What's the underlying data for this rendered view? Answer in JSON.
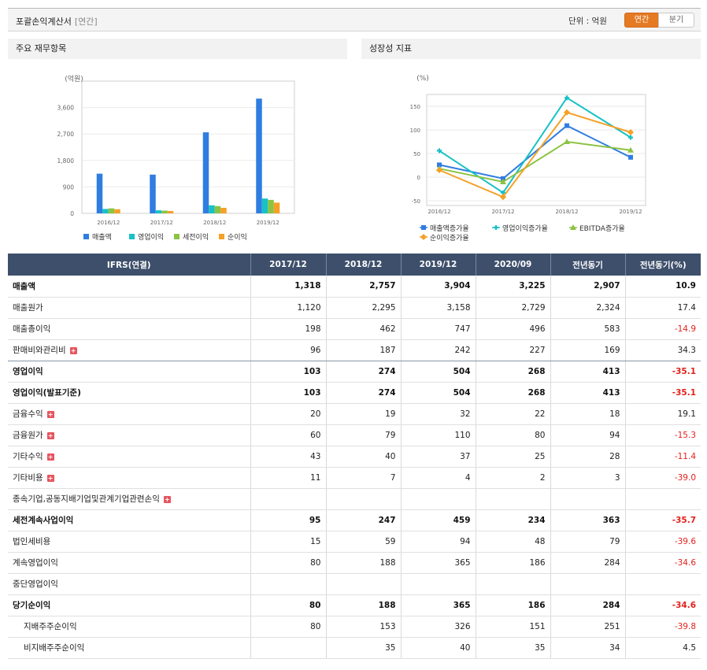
{
  "header": {
    "title": "포괄손익계산서",
    "period": "[연간]",
    "unit_label": "단위 : 억원",
    "tab_annual": "연간",
    "tab_quarter": "분기"
  },
  "panels": {
    "left_title": "주요 재무항목",
    "right_title": "성장성 지표"
  },
  "colors": {
    "blue": "#2f7de1",
    "cyan": "#17c1c6",
    "green": "#8cc342",
    "orange": "#f5a027",
    "header_bg": "#3d4f6b",
    "negative": "#e3211c",
    "accent": "#e57a23"
  },
  "chart_data": [
    {
      "type": "bar",
      "title": "",
      "ylabel": "(억원)",
      "ylim": [
        0,
        4500
      ],
      "yticks": [
        "0",
        "900",
        "1,800",
        "2,700",
        "3,600"
      ],
      "ytick_values": [
        0,
        900,
        1800,
        2700,
        3600
      ],
      "categories": [
        "2016/12",
        "2017/12",
        "2018/12",
        "2019/12"
      ],
      "legend_position": "bottom",
      "series": [
        {
          "name": "매출액",
          "color": "#2f7de1",
          "values": [
            1350,
            1318,
            2757,
            3904
          ]
        },
        {
          "name": "영업이익",
          "color": "#17c1c6",
          "values": [
            150,
            103,
            274,
            504
          ]
        },
        {
          "name": "세전이익",
          "color": "#8cc342",
          "values": [
            170,
            95,
            247,
            459
          ]
        },
        {
          "name": "순이익",
          "color": "#f5a027",
          "values": [
            140,
            80,
            188,
            365
          ]
        }
      ]
    },
    {
      "type": "line",
      "title": "",
      "ylabel": "(%)",
      "ylim": [
        -60,
        175
      ],
      "yticks": [
        "-50",
        "0",
        "50",
        "100",
        "150"
      ],
      "ytick_values": [
        -50,
        0,
        50,
        100,
        150
      ],
      "categories": [
        "2016/12",
        "2017/12",
        "2018/12",
        "2019/12"
      ],
      "legend_position": "bottom",
      "series": [
        {
          "name": "매출액증가율",
          "color": "#2f7de1",
          "marker": "square",
          "values": [
            26,
            -3,
            109,
            42
          ]
        },
        {
          "name": "영업이익증가율",
          "color": "#17c1c6",
          "marker": "plus",
          "values": [
            56,
            -33,
            168,
            84
          ]
        },
        {
          "name": "EBITDA증가율",
          "color": "#8cc342",
          "marker": "triangle",
          "values": [
            18,
            -10,
            75,
            57
          ]
        },
        {
          "name": "순이익증가율",
          "color": "#f5a027",
          "marker": "diamond",
          "values": [
            15,
            -42,
            137,
            95
          ]
        }
      ]
    }
  ],
  "table": {
    "headers": [
      "IFRS(연결)",
      "2017/12",
      "2018/12",
      "2019/12",
      "2020/09",
      "전년동기",
      "전년동기(%)"
    ],
    "rows": [
      {
        "label": "매출액",
        "bold": true,
        "plus": false,
        "indent": false,
        "cells": [
          "1,318",
          "2,757",
          "3,904",
          "3,225",
          "2,907",
          "10.9"
        ],
        "neg": false
      },
      {
        "label": "매출원가",
        "bold": false,
        "plus": false,
        "indent": false,
        "cells": [
          "1,120",
          "2,295",
          "3,158",
          "2,729",
          "2,324",
          "17.4"
        ],
        "neg": false
      },
      {
        "label": "매출총이익",
        "bold": false,
        "plus": false,
        "indent": false,
        "cells": [
          "198",
          "462",
          "747",
          "496",
          "583",
          "-14.9"
        ],
        "neg": true
      },
      {
        "label": "판매비와관리비",
        "bold": false,
        "plus": true,
        "indent": false,
        "cells": [
          "96",
          "187",
          "242",
          "227",
          "169",
          "34.3"
        ],
        "neg": false,
        "divider": true
      },
      {
        "label": "영업이익",
        "bold": true,
        "plus": false,
        "indent": false,
        "cells": [
          "103",
          "274",
          "504",
          "268",
          "413",
          "-35.1"
        ],
        "neg": true
      },
      {
        "label": "영업이익(발표기준)",
        "bold": true,
        "plus": false,
        "indent": false,
        "cells": [
          "103",
          "274",
          "504",
          "268",
          "413",
          "-35.1"
        ],
        "neg": true
      },
      {
        "label": "금융수익",
        "bold": false,
        "plus": true,
        "indent": false,
        "cells": [
          "20",
          "19",
          "32",
          "22",
          "18",
          "19.1"
        ],
        "neg": false
      },
      {
        "label": "금융원가",
        "bold": false,
        "plus": true,
        "indent": false,
        "cells": [
          "60",
          "79",
          "110",
          "80",
          "94",
          "-15.3"
        ],
        "neg": true
      },
      {
        "label": "기타수익",
        "bold": false,
        "plus": true,
        "indent": false,
        "cells": [
          "43",
          "40",
          "37",
          "25",
          "28",
          "-11.4"
        ],
        "neg": true
      },
      {
        "label": "기타비용",
        "bold": false,
        "plus": true,
        "indent": false,
        "cells": [
          "11",
          "7",
          "4",
          "2",
          "3",
          "-39.0"
        ],
        "neg": true
      },
      {
        "label": "종속기업,공동지배기업및관계기업관련손익",
        "bold": false,
        "plus": true,
        "indent": false,
        "cells": [
          "",
          "",
          "",
          "",
          "",
          ""
        ],
        "neg": false
      },
      {
        "label": "세전계속사업이익",
        "bold": true,
        "plus": false,
        "indent": false,
        "cells": [
          "95",
          "247",
          "459",
          "234",
          "363",
          "-35.7"
        ],
        "neg": true
      },
      {
        "label": "법인세비용",
        "bold": false,
        "plus": false,
        "indent": false,
        "cells": [
          "15",
          "59",
          "94",
          "48",
          "79",
          "-39.6"
        ],
        "neg": true
      },
      {
        "label": "계속영업이익",
        "bold": false,
        "plus": false,
        "indent": false,
        "cells": [
          "80",
          "188",
          "365",
          "186",
          "284",
          "-34.6"
        ],
        "neg": true
      },
      {
        "label": "중단영업이익",
        "bold": false,
        "plus": false,
        "indent": false,
        "cells": [
          "",
          "",
          "",
          "",
          "",
          ""
        ],
        "neg": false
      },
      {
        "label": "당기순이익",
        "bold": true,
        "plus": false,
        "indent": false,
        "cells": [
          "80",
          "188",
          "365",
          "186",
          "284",
          "-34.6"
        ],
        "neg": true
      },
      {
        "label": "지배주주순이익",
        "bold": false,
        "plus": false,
        "indent": true,
        "cells": [
          "80",
          "153",
          "326",
          "151",
          "251",
          "-39.8"
        ],
        "neg": true
      },
      {
        "label": "비지배주주순이익",
        "bold": false,
        "plus": false,
        "indent": true,
        "cells": [
          "",
          "35",
          "40",
          "35",
          "34",
          "4.5"
        ],
        "neg": false
      }
    ]
  }
}
